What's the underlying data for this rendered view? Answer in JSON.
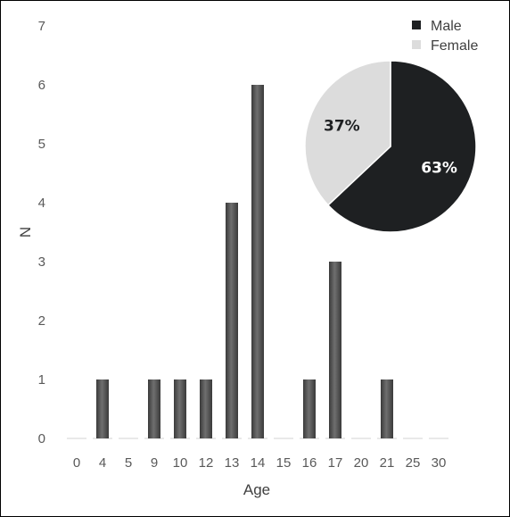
{
  "chart_data": [
    {
      "type": "bar",
      "categories": [
        "0",
        "4",
        "5",
        "9",
        "10",
        "12",
        "13",
        "14",
        "15",
        "16",
        "17",
        "20",
        "21",
        "25",
        "30"
      ],
      "values": [
        0,
        1,
        0,
        1,
        1,
        1,
        4,
        6,
        0,
        1,
        3,
        0,
        1,
        0,
        0
      ],
      "xlabel": "Age",
      "ylabel": "N",
      "ylim": [
        0,
        7
      ],
      "yticks": [
        "0",
        "1",
        "2",
        "3",
        "4",
        "5",
        "6",
        "7"
      ],
      "grid": false,
      "bar_color": "#555555"
    },
    {
      "type": "pie",
      "labels": [
        "Male",
        "Female"
      ],
      "values": [
        63,
        37
      ],
      "value_labels": [
        "63%",
        "37%"
      ],
      "colors": [
        "#1e2022",
        "#dcdcdc"
      ],
      "label_colors": [
        "#ffffff",
        "#1e2022"
      ],
      "legend_position": "top-right"
    }
  ]
}
